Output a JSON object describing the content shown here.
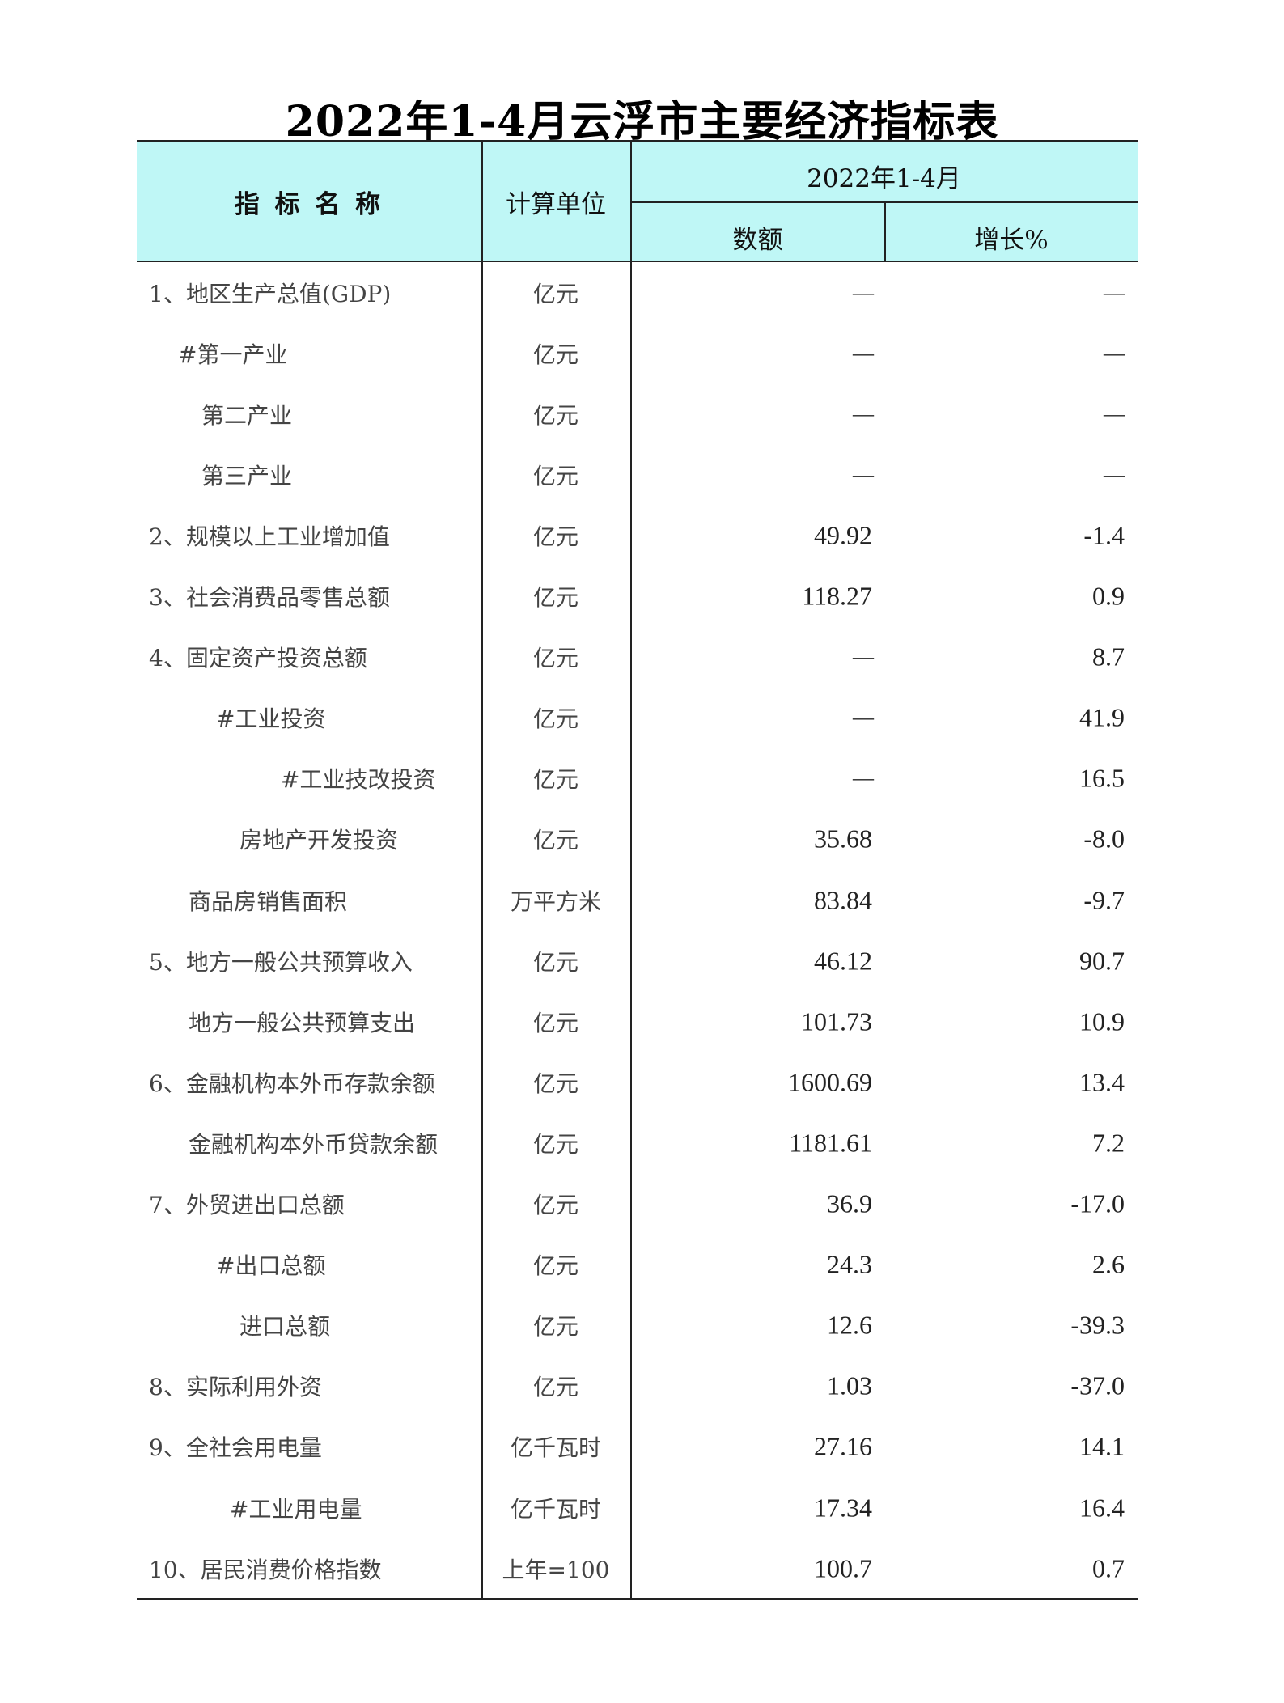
{
  "title": "2022年1-4月云浮市主要经济指标表",
  "header": {
    "indicator_name": "指 标 名 称",
    "unit": "计算单位",
    "period": "2022年1-4月",
    "amount": "数额",
    "growth": "增长%"
  },
  "rows": [
    {
      "name": "1、地区生产总值(GDP)",
      "unit": "亿元",
      "amount": "—",
      "growth": "—"
    },
    {
      "name": "#第一产业",
      "unit": "亿元",
      "amount": "—",
      "growth": "—"
    },
    {
      "name": "第二产业",
      "unit": "亿元",
      "amount": "—",
      "growth": "—"
    },
    {
      "name": "第三产业",
      "unit": "亿元",
      "amount": "—",
      "growth": "—"
    },
    {
      "name": "2、规模以上工业增加值",
      "unit": "亿元",
      "amount": "49.92",
      "growth": "-1.4"
    },
    {
      "name": "3、社会消费品零售总额",
      "unit": "亿元",
      "amount": "118.27",
      "growth": "0.9"
    },
    {
      "name": "4、固定资产投资总额",
      "unit": "亿元",
      "amount": "—",
      "growth": "8.7"
    },
    {
      "name": "#工业投资",
      "unit": "亿元",
      "amount": "—",
      "growth": "41.9"
    },
    {
      "name": "#工业技改投资",
      "unit": "亿元",
      "amount": "—",
      "growth": "16.5"
    },
    {
      "name": "房地产开发投资",
      "unit": "亿元",
      "amount": "35.68",
      "growth": "-8.0"
    },
    {
      "name": "商品房销售面积",
      "unit": "万平方米",
      "amount": "83.84",
      "growth": "-9.7"
    },
    {
      "name": "5、地方一般公共预算收入",
      "unit": "亿元",
      "amount": "46.12",
      "growth": "90.7"
    },
    {
      "name": "地方一般公共预算支出",
      "unit": "亿元",
      "amount": "101.73",
      "growth": "10.9"
    },
    {
      "name": "6、金融机构本外币存款余额",
      "unit": "亿元",
      "amount": "1600.69",
      "growth": "13.4"
    },
    {
      "name": "金融机构本外币贷款余额",
      "unit": "亿元",
      "amount": "1181.61",
      "growth": "7.2"
    },
    {
      "name": "7、外贸进出口总额",
      "unit": "亿元",
      "amount": "36.9",
      "growth": "-17.0"
    },
    {
      "name": "#出口总额",
      "unit": "亿元",
      "amount": "24.3",
      "growth": "2.6"
    },
    {
      "name": "进口总额",
      "unit": "亿元",
      "amount": "12.6",
      "growth": "-39.3"
    },
    {
      "name": "8、实际利用外资",
      "unit": "亿元",
      "amount": "1.03",
      "growth": "-37.0"
    },
    {
      "name": "9、全社会用电量",
      "unit": "亿千瓦时",
      "amount": "27.16",
      "growth": "14.1"
    },
    {
      "name": "#工业用电量",
      "unit": "亿千瓦时",
      "amount": "17.34",
      "growth": "16.4"
    },
    {
      "name": "10、居民消费价格指数",
      "unit": "上年=100",
      "amount": "100.7",
      "growth": "0.7"
    }
  ]
}
